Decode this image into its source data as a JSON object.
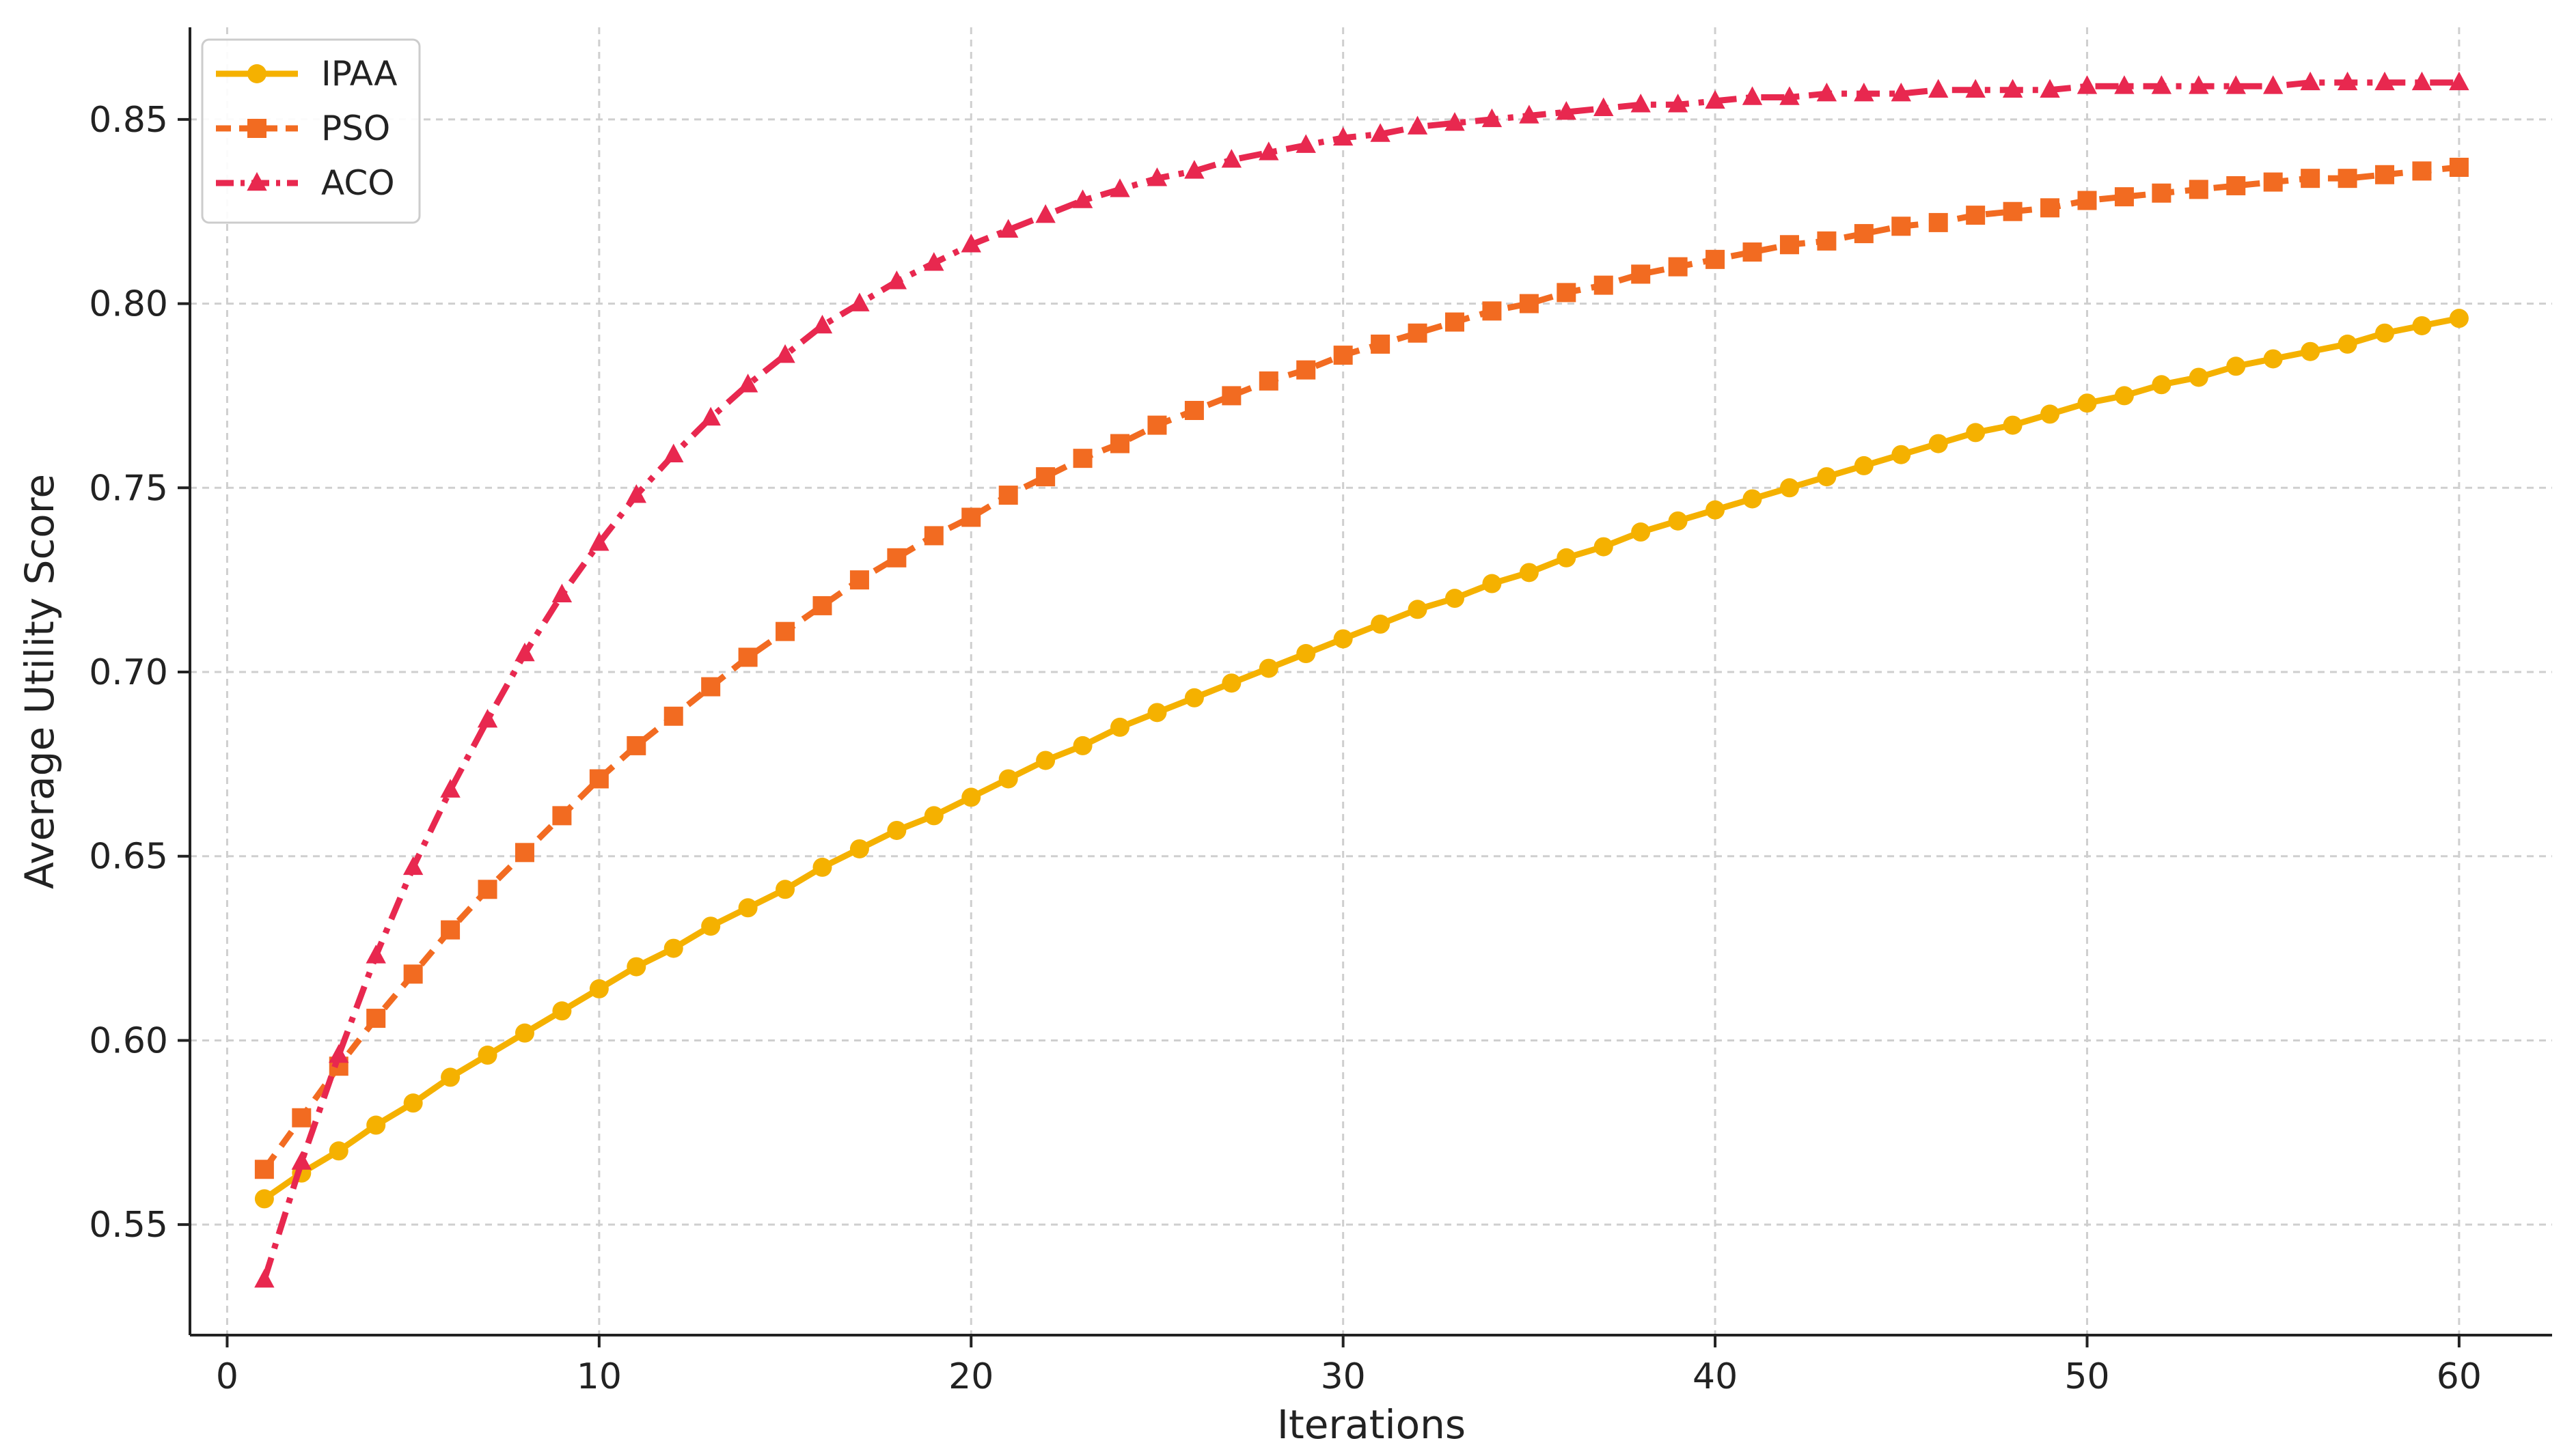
{
  "chart_data": {
    "type": "line",
    "xlabel": "Iterations",
    "ylabel": "Average Utility Score",
    "xlim": [
      -1,
      62.5
    ],
    "ylim": [
      0.52,
      0.875
    ],
    "xticks": [
      0,
      10,
      20,
      30,
      40,
      50,
      60
    ],
    "yticks": [
      0.55,
      0.6,
      0.65,
      0.7,
      0.75,
      0.8,
      0.85
    ],
    "ytick_labels": [
      "0.55",
      "0.60",
      "0.65",
      "0.70",
      "0.75",
      "0.80",
      "0.85"
    ],
    "grid": true,
    "legend_position": "top-left",
    "x": [
      1,
      2,
      3,
      4,
      5,
      6,
      7,
      8,
      9,
      10,
      11,
      12,
      13,
      14,
      15,
      16,
      17,
      18,
      19,
      20,
      21,
      22,
      23,
      24,
      25,
      26,
      27,
      28,
      29,
      30,
      31,
      32,
      33,
      34,
      35,
      36,
      37,
      38,
      39,
      40,
      41,
      42,
      43,
      44,
      45,
      46,
      47,
      48,
      49,
      50,
      51,
      52,
      53,
      54,
      55,
      56,
      57,
      58,
      59,
      60
    ],
    "series": [
      {
        "name": "IPAA",
        "color": "#f5b100",
        "marker": "circle",
        "line_style": "solid",
        "values": [
          0.557,
          0.564,
          0.57,
          0.577,
          0.583,
          0.59,
          0.596,
          0.602,
          0.608,
          0.614,
          0.62,
          0.625,
          0.631,
          0.636,
          0.641,
          0.647,
          0.652,
          0.657,
          0.661,
          0.666,
          0.671,
          0.676,
          0.68,
          0.685,
          0.689,
          0.693,
          0.697,
          0.701,
          0.705,
          0.709,
          0.713,
          0.717,
          0.72,
          0.724,
          0.727,
          0.731,
          0.734,
          0.738,
          0.741,
          0.744,
          0.747,
          0.75,
          0.753,
          0.756,
          0.759,
          0.762,
          0.765,
          0.767,
          0.77,
          0.773,
          0.775,
          0.778,
          0.78,
          0.783,
          0.785,
          0.787,
          0.789,
          0.792,
          0.794,
          0.796
        ]
      },
      {
        "name": "PSO",
        "color": "#f26b21",
        "marker": "square",
        "line_style": "dashed",
        "values": [
          0.565,
          0.579,
          0.593,
          0.606,
          0.618,
          0.63,
          0.641,
          0.651,
          0.661,
          0.671,
          0.68,
          0.688,
          0.696,
          0.704,
          0.711,
          0.718,
          0.725,
          0.731,
          0.737,
          0.742,
          0.748,
          0.753,
          0.758,
          0.762,
          0.767,
          0.771,
          0.775,
          0.779,
          0.782,
          0.786,
          0.789,
          0.792,
          0.795,
          0.798,
          0.8,
          0.803,
          0.805,
          0.808,
          0.81,
          0.812,
          0.814,
          0.816,
          0.817,
          0.819,
          0.821,
          0.822,
          0.824,
          0.825,
          0.826,
          0.828,
          0.829,
          0.83,
          0.831,
          0.832,
          0.833,
          0.834,
          0.834,
          0.835,
          0.836,
          0.837
        ]
      },
      {
        "name": "ACO",
        "color": "#e8284f",
        "marker": "triangle",
        "line_style": "dashdot",
        "values": [
          0.535,
          0.567,
          0.596,
          0.623,
          0.647,
          0.668,
          0.687,
          0.705,
          0.721,
          0.735,
          0.748,
          0.759,
          0.769,
          0.778,
          0.786,
          0.794,
          0.8,
          0.806,
          0.811,
          0.816,
          0.82,
          0.824,
          0.828,
          0.831,
          0.834,
          0.836,
          0.839,
          0.841,
          0.843,
          0.845,
          0.846,
          0.848,
          0.849,
          0.85,
          0.851,
          0.852,
          0.853,
          0.854,
          0.854,
          0.855,
          0.856,
          0.856,
          0.857,
          0.857,
          0.857,
          0.858,
          0.858,
          0.858,
          0.858,
          0.859,
          0.859,
          0.859,
          0.859,
          0.859,
          0.859,
          0.86,
          0.86,
          0.86,
          0.86,
          0.86
        ]
      }
    ]
  }
}
